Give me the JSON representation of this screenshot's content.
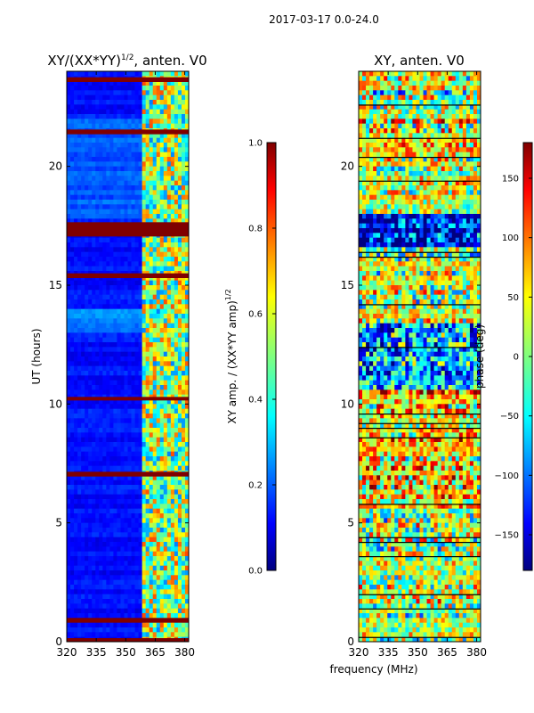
{
  "suptitle": "2017-03-17 0.0-24.0",
  "xlabel": "frequency (MHz)",
  "chart_data": [
    {
      "type": "heatmap",
      "title_main": "XY/(XX*YY)",
      "title_sup": "1/2",
      "title_tail": ", anten. V0",
      "xlabel": "",
      "ylabel": "UT (hours)",
      "xlim": [
        320,
        382
      ],
      "ylim": [
        0,
        24
      ],
      "xticks": [
        320,
        335,
        350,
        365,
        380
      ],
      "yticks": [
        0,
        5,
        10,
        15,
        20
      ],
      "colorbar": {
        "label_main": "XY amp. / (XX*YY amp)",
        "label_sup": "1/2",
        "range": [
          0.0,
          1.0
        ],
        "ticks": [
          "0.0",
          "0.2",
          "0.4",
          "0.6",
          "0.8",
          "1.0"
        ],
        "tick_values": [
          0.0,
          0.2,
          0.4,
          0.6,
          0.8,
          1.0
        ],
        "colormap": "jet"
      },
      "saturated_bands_hours": [
        [
          23.55,
          23.75
        ],
        [
          21.35,
          21.55
        ],
        [
          17.05,
          17.65
        ],
        [
          15.3,
          15.5
        ],
        [
          10.15,
          10.3
        ],
        [
          6.95,
          7.15
        ],
        [
          0.8,
          1.0
        ],
        [
          0.0,
          0.15
        ]
      ],
      "bright_frequency_range_mhz": [
        360,
        382
      ]
    },
    {
      "type": "heatmap",
      "title": "XY, anten. V0",
      "xlabel": "",
      "ylabel": "",
      "xlim": [
        320,
        382
      ],
      "ylim": [
        0,
        24
      ],
      "xticks": [
        320,
        335,
        350,
        365,
        380
      ],
      "yticks": [
        0,
        5,
        10,
        15,
        20
      ],
      "colorbar": {
        "label": "phase (deg)",
        "range": [
          -180,
          180
        ],
        "ticks": [
          "−150",
          "−100",
          "−50",
          "0",
          "50",
          "100",
          "150"
        ],
        "tick_values": [
          -150,
          -100,
          -50,
          0,
          50,
          100,
          150
        ],
        "colormap": "jet"
      }
    }
  ]
}
